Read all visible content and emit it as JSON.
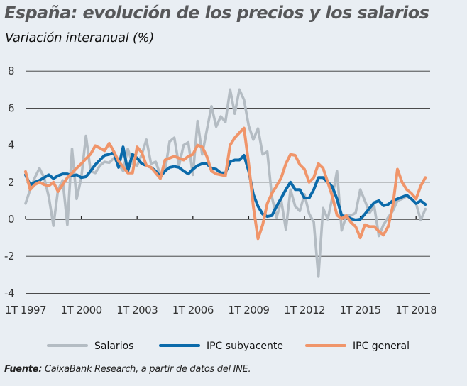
{
  "chart_data": {
    "type": "line",
    "title": "España: evolución de los precios y los salarios",
    "subtitle": "Variación interanual (%)",
    "xlabel": "",
    "ylabel": "",
    "ylim": [
      -4,
      8
    ],
    "yticks": [
      "8",
      "6",
      "4",
      "2",
      "0",
      "-2",
      "-4"
    ],
    "ytick_values": [
      8,
      6,
      4,
      2,
      0,
      -2,
      -4
    ],
    "xticks": [
      "1T 1997",
      "1T 2000",
      "1T 2003",
      "1T 2006",
      "1T 2009",
      "1T 2012",
      "1T 2015",
      "1T 2018"
    ],
    "grid": true,
    "legend_position": "bottom",
    "x": [
      "1T 1997",
      "2T 1997",
      "3T 1997",
      "4T 1997",
      "1T 1998",
      "2T 1998",
      "3T 1998",
      "4T 1998",
      "1T 1999",
      "2T 1999",
      "3T 1999",
      "4T 1999",
      "1T 2000",
      "2T 2000",
      "3T 2000",
      "4T 2000",
      "1T 2001",
      "2T 2001",
      "3T 2001",
      "4T 2001",
      "1T 2002",
      "2T 2002",
      "3T 2002",
      "4T 2002",
      "1T 2003",
      "2T 2003",
      "3T 2003",
      "4T 2003",
      "1T 2004",
      "2T 2004",
      "3T 2004",
      "4T 2004",
      "1T 2005",
      "2T 2005",
      "3T 2005",
      "4T 2005",
      "1T 2006",
      "2T 2006",
      "3T 2006",
      "4T 2006",
      "1T 2007",
      "2T 2007",
      "3T 2007",
      "4T 2007",
      "1T 2008",
      "2T 2008",
      "3T 2008",
      "4T 2008",
      "1T 2009",
      "2T 2009",
      "3T 2009",
      "4T 2009",
      "1T 2010",
      "2T 2010",
      "3T 2010",
      "4T 2010",
      "1T 2011",
      "2T 2011",
      "3T 2011",
      "4T 2011",
      "1T 2012",
      "2T 2012",
      "3T 2012",
      "4T 2012",
      "1T 2013",
      "2T 2013",
      "3T 2013",
      "4T 2013",
      "1T 2014",
      "2T 2014",
      "3T 2014",
      "4T 2014",
      "1T 2015",
      "2T 2015",
      "3T 2015",
      "4T 2015",
      "1T 2016",
      "2T 2016",
      "3T 2016",
      "4T 2016",
      "1T 2017",
      "2T 2017",
      "3T 2017",
      "4T 2017",
      "1T 2018",
      "2T 2018",
      "3T 2018"
    ],
    "series": [
      {
        "name": "Salarios",
        "color": "#b4bcc3",
        "values": [
          0.85,
          1.6,
          2.25,
          2.75,
          2.25,
          1.2,
          -0.35,
          1.6,
          2.1,
          -0.3,
          3.8,
          1.1,
          2.25,
          4.5,
          2.6,
          2.5,
          2.9,
          3.1,
          3.05,
          3.3,
          3.0,
          2.6,
          3.8,
          3.0,
          2.9,
          3.5,
          4.3,
          3.0,
          3.1,
          2.4,
          2.6,
          4.2,
          4.4,
          2.9,
          4.0,
          4.15,
          2.4,
          5.3,
          3.5,
          4.8,
          6.1,
          5.0,
          5.55,
          5.25,
          7.0,
          5.7,
          7.0,
          6.45,
          5.05,
          4.3,
          4.9,
          3.5,
          3.65,
          1.2,
          0.1,
          1.0,
          -0.55,
          1.6,
          0.7,
          0.45,
          1.35,
          0.3,
          -0.15,
          -3.1,
          0.6,
          0.0,
          1.2,
          2.6,
          -0.6,
          0.2,
          0.2,
          0.35,
          1.6,
          1.0,
          0.35,
          0.7,
          -0.9,
          -0.3,
          0.1,
          0.45,
          1.0,
          1.1,
          1.25,
          1.1,
          0.85,
          -0.05,
          0.55
        ]
      },
      {
        "name": "IPC subyacente",
        "color": "#0b6aaa",
        "values": [
          2.4,
          1.85,
          2.0,
          2.1,
          2.25,
          2.4,
          2.2,
          2.35,
          2.45,
          2.45,
          2.35,
          2.4,
          2.25,
          2.3,
          2.6,
          2.95,
          3.2,
          3.45,
          3.5,
          3.6,
          2.8,
          3.9,
          2.6,
          3.5,
          3.3,
          3.0,
          2.9,
          2.8,
          2.6,
          2.3,
          2.6,
          2.8,
          2.85,
          2.8,
          2.6,
          2.45,
          2.7,
          2.9,
          3.0,
          3.0,
          2.75,
          2.7,
          2.5,
          2.5,
          3.1,
          3.2,
          3.2,
          3.45,
          2.6,
          1.35,
          0.7,
          0.28,
          0.15,
          0.2,
          0.7,
          1.15,
          1.6,
          2.0,
          1.6,
          1.6,
          1.15,
          1.15,
          1.6,
          2.25,
          2.25,
          2.0,
          1.75,
          1.1,
          0.2,
          0.15,
          0.03,
          -0.04,
          0.0,
          0.28,
          0.6,
          0.9,
          1.0,
          0.73,
          0.8,
          1.0,
          1.1,
          1.2,
          1.3,
          1.1,
          0.85,
          1.0,
          0.8
        ]
      },
      {
        "name": "IPC general",
        "color": "#f0956a",
        "values": [
          2.57,
          1.6,
          1.87,
          2.0,
          1.87,
          1.8,
          2.0,
          1.5,
          1.87,
          2.25,
          2.5,
          2.76,
          3.0,
          3.27,
          3.52,
          3.97,
          3.84,
          3.7,
          4.1,
          3.65,
          3.14,
          2.82,
          2.5,
          2.5,
          3.9,
          3.6,
          2.9,
          2.8,
          2.5,
          2.2,
          3.2,
          3.3,
          3.4,
          3.3,
          3.2,
          3.4,
          3.5,
          4.0,
          3.9,
          3.4,
          2.6,
          2.45,
          2.4,
          2.35,
          4.0,
          4.4,
          4.67,
          4.92,
          3.0,
          0.7,
          -1.05,
          -0.3,
          0.85,
          1.4,
          1.8,
          2.25,
          3.0,
          3.5,
          3.45,
          2.95,
          2.7,
          2.0,
          2.25,
          3.0,
          2.76,
          2.0,
          1.23,
          0.22,
          0.03,
          0.2,
          -0.17,
          -0.4,
          -1.0,
          -0.3,
          -0.4,
          -0.4,
          -0.65,
          -0.85,
          -0.4,
          0.7,
          2.7,
          2.0,
          1.6,
          1.4,
          1.1,
          1.8,
          2.25
        ]
      }
    ]
  },
  "footer": {
    "label": "Fuente:",
    "text": " CaixaBank Research, a partir de datos del INE."
  }
}
